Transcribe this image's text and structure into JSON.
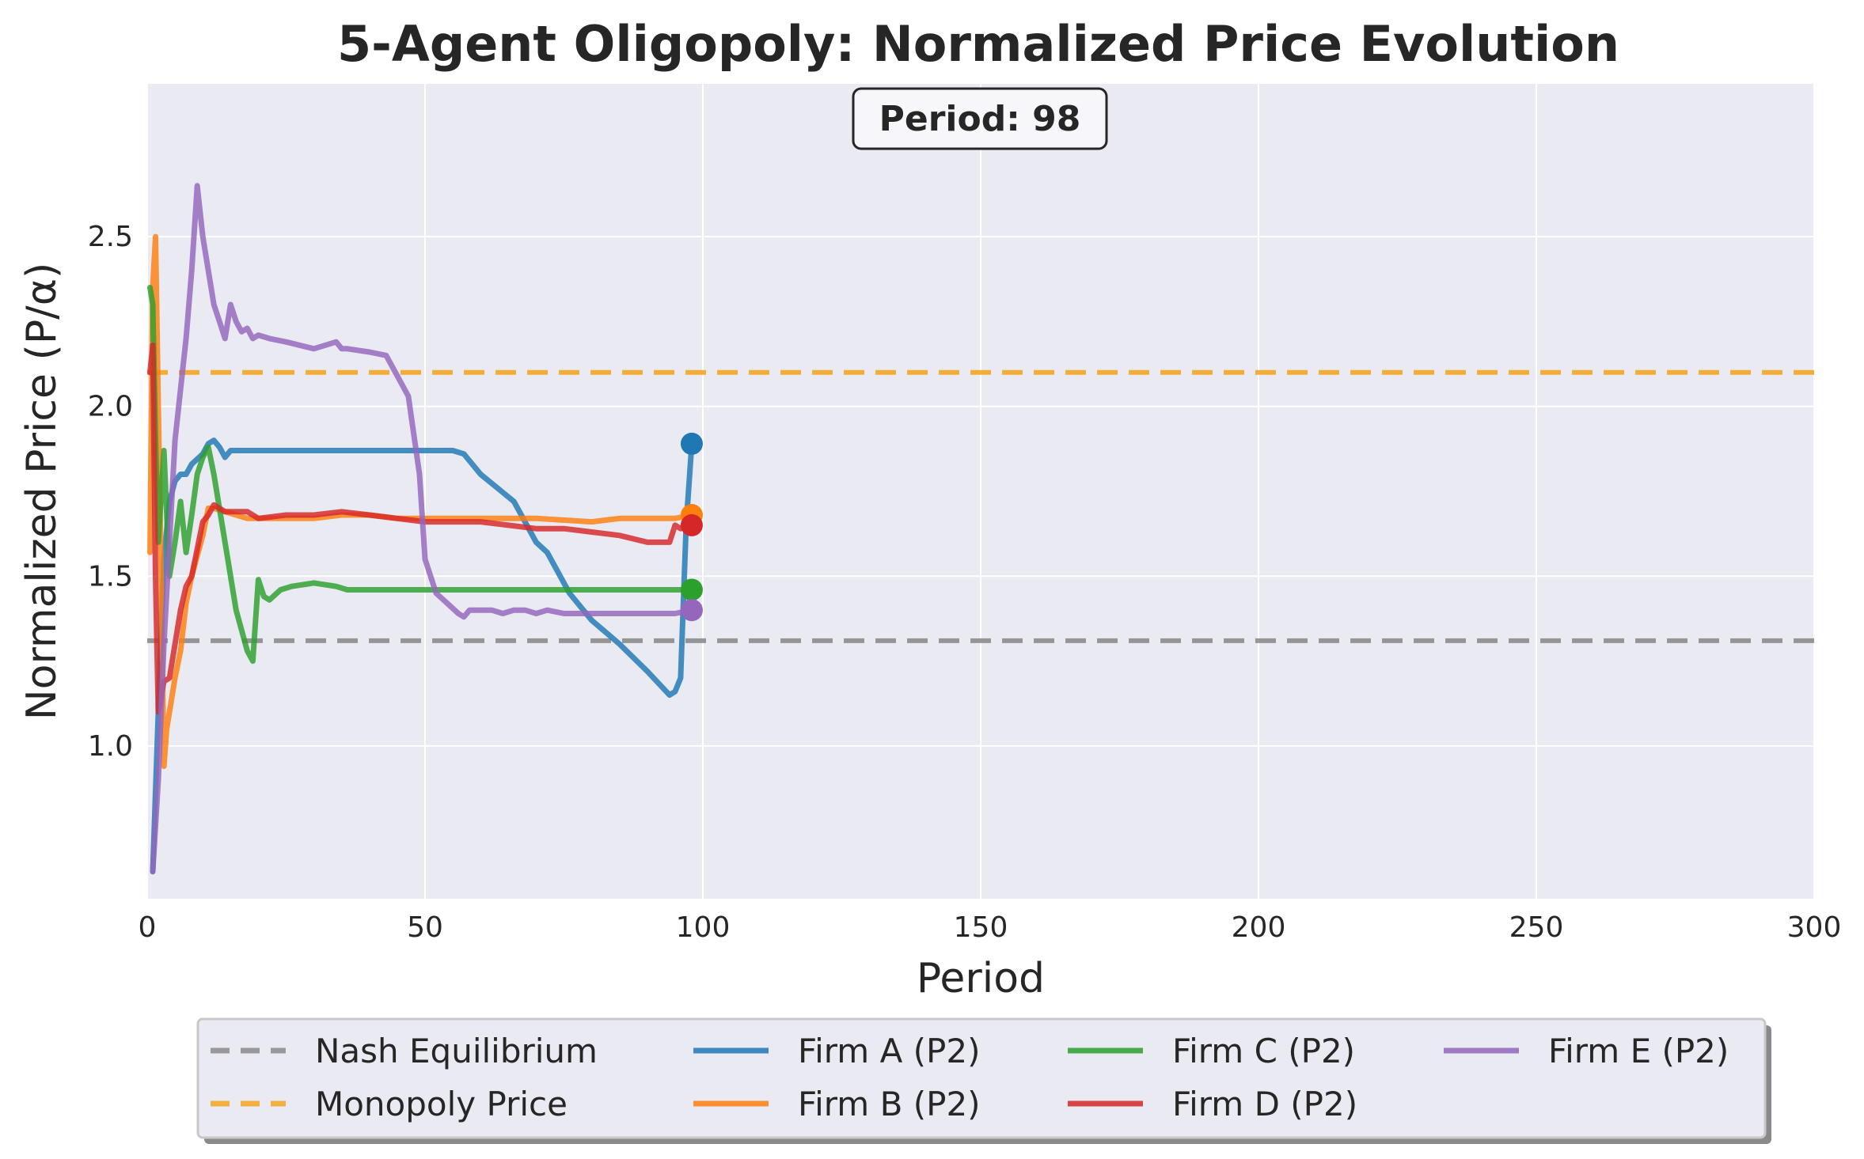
{
  "chart_data": {
    "type": "line",
    "title": "5-Agent Oligopoly: Normalized Price Evolution",
    "xlabel": "Period",
    "ylabel": "Normalized Price (P/α)",
    "xlim": [
      0,
      300
    ],
    "ylim": [
      0.55,
      2.95
    ],
    "xticks": [
      0,
      50,
      100,
      150,
      200,
      250,
      300
    ],
    "yticks": [
      1.0,
      1.5,
      2.0,
      2.5
    ],
    "grid": true,
    "legend_position": "bottom",
    "annotation": "Period: 98",
    "reference_lines": [
      {
        "name": "Nash Equilibrium",
        "y": 1.31,
        "color": "#8c8c8c",
        "style": "dashed"
      },
      {
        "name": "Monopoly Price",
        "y": 2.1,
        "color": "#f5a623",
        "style": "dashed"
      }
    ],
    "series": [
      {
        "name": "Firm A (P2)",
        "color": "#1f77b4",
        "x": [
          1,
          2,
          3,
          4,
          5,
          6,
          7,
          8,
          10,
          11,
          12,
          13,
          14,
          15,
          16,
          18,
          20,
          25,
          30,
          40,
          50,
          55,
          57,
          60,
          66,
          70,
          72,
          76,
          80,
          85,
          90,
          94,
          95,
          96,
          97,
          98
        ],
        "y": [
          0.63,
          1.1,
          1.55,
          1.72,
          1.78,
          1.8,
          1.8,
          1.83,
          1.86,
          1.89,
          1.9,
          1.88,
          1.85,
          1.87,
          1.87,
          1.87,
          1.87,
          1.87,
          1.87,
          1.87,
          1.87,
          1.87,
          1.86,
          1.8,
          1.72,
          1.6,
          1.57,
          1.45,
          1.37,
          1.3,
          1.22,
          1.15,
          1.16,
          1.2,
          1.65,
          1.89
        ]
      },
      {
        "name": "Firm B (P2)",
        "color": "#ff7f0e",
        "x": [
          0.5,
          1,
          1.5,
          2,
          2.5,
          3,
          3.5,
          4,
          5,
          6,
          7,
          8,
          10,
          11,
          12,
          14,
          16,
          18,
          20,
          25,
          30,
          35,
          40,
          45,
          50,
          60,
          70,
          80,
          85,
          90,
          95,
          98
        ],
        "y": [
          1.57,
          2.35,
          2.5,
          2.0,
          1.5,
          0.94,
          1.05,
          1.1,
          1.2,
          1.28,
          1.42,
          1.5,
          1.62,
          1.7,
          1.7,
          1.69,
          1.68,
          1.67,
          1.67,
          1.67,
          1.67,
          1.68,
          1.68,
          1.67,
          1.67,
          1.67,
          1.67,
          1.66,
          1.67,
          1.67,
          1.67,
          1.68
        ]
      },
      {
        "name": "Firm C (P2)",
        "color": "#2ca02c",
        "x": [
          0.5,
          1,
          1.5,
          2,
          3,
          4,
          5,
          6,
          7,
          8,
          9,
          10,
          11,
          12,
          14,
          16,
          18,
          19,
          20,
          21,
          22,
          24,
          26,
          30,
          34,
          36,
          40,
          50,
          60,
          70,
          80,
          90,
          95,
          98
        ],
        "y": [
          2.35,
          2.3,
          1.9,
          1.6,
          1.87,
          1.5,
          1.6,
          1.72,
          1.57,
          1.68,
          1.8,
          1.85,
          1.88,
          1.8,
          1.6,
          1.4,
          1.28,
          1.25,
          1.49,
          1.44,
          1.43,
          1.46,
          1.47,
          1.48,
          1.47,
          1.46,
          1.46,
          1.46,
          1.46,
          1.46,
          1.46,
          1.46,
          1.46,
          1.46
        ]
      },
      {
        "name": "Firm D (P2)",
        "color": "#d62728",
        "x": [
          0.5,
          1,
          1.5,
          2,
          3,
          4,
          5,
          6,
          7,
          8,
          9,
          10,
          11,
          12,
          14,
          16,
          18,
          20,
          25,
          30,
          35,
          40,
          45,
          50,
          55,
          60,
          65,
          70,
          75,
          80,
          85,
          90,
          94,
          95,
          96,
          98
        ],
        "y": [
          2.1,
          2.18,
          1.5,
          1.1,
          1.19,
          1.2,
          1.3,
          1.4,
          1.47,
          1.5,
          1.58,
          1.66,
          1.68,
          1.71,
          1.69,
          1.69,
          1.69,
          1.67,
          1.68,
          1.68,
          1.69,
          1.68,
          1.67,
          1.66,
          1.66,
          1.66,
          1.65,
          1.64,
          1.64,
          1.63,
          1.62,
          1.6,
          1.6,
          1.65,
          1.64,
          1.65
        ]
      },
      {
        "name": "Firm E (P2)",
        "color": "#9467bd",
        "x": [
          1,
          2,
          3,
          4,
          5,
          6,
          7,
          8,
          9,
          10,
          11,
          12,
          13,
          14,
          15,
          16,
          17,
          18,
          19,
          20,
          22,
          25,
          30,
          34,
          35,
          36,
          40,
          43,
          47,
          49,
          50,
          52,
          54,
          56,
          57,
          58,
          60,
          62,
          64,
          66,
          68,
          70,
          72,
          75,
          80,
          85,
          90,
          95,
          98
        ],
        "y": [
          0.63,
          0.9,
          1.3,
          1.6,
          1.9,
          2.05,
          2.2,
          2.4,
          2.65,
          2.5,
          2.4,
          2.3,
          2.25,
          2.2,
          2.3,
          2.25,
          2.22,
          2.23,
          2.2,
          2.21,
          2.2,
          2.19,
          2.17,
          2.19,
          2.17,
          2.17,
          2.16,
          2.15,
          2.03,
          1.8,
          1.55,
          1.45,
          1.42,
          1.39,
          1.38,
          1.4,
          1.4,
          1.4,
          1.39,
          1.4,
          1.4,
          1.39,
          1.4,
          1.39,
          1.39,
          1.39,
          1.39,
          1.39,
          1.4
        ]
      }
    ]
  }
}
